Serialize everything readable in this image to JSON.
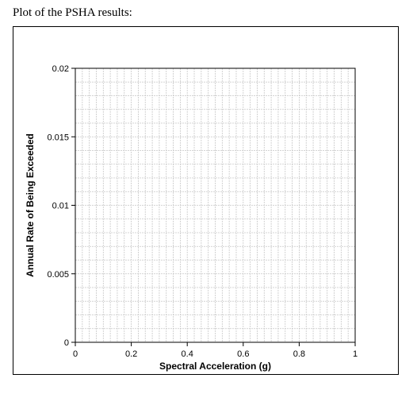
{
  "heading": "Plot of the PSHA results:",
  "chart_data": {
    "type": "line",
    "title": "",
    "xlabel": "Spectral Acceleration (g)",
    "ylabel": "Annual Rate of Being Exceeded",
    "xlim": [
      0,
      1
    ],
    "ylim": [
      0,
      0.02
    ],
    "x_ticks": [
      0,
      0.2,
      0.4,
      0.6,
      0.8,
      1
    ],
    "x_tick_labels": [
      "0",
      "0.2",
      "0.4",
      "0.6",
      "0.8",
      "1"
    ],
    "y_ticks": [
      0,
      0.005,
      0.01,
      0.015,
      0.02
    ],
    "y_tick_labels": [
      "0",
      "0.005",
      "0.01",
      "0.015",
      "0.02"
    ],
    "x_minor_step": 0.025,
    "y_minor_step": 0.001,
    "grid": true,
    "series": []
  }
}
